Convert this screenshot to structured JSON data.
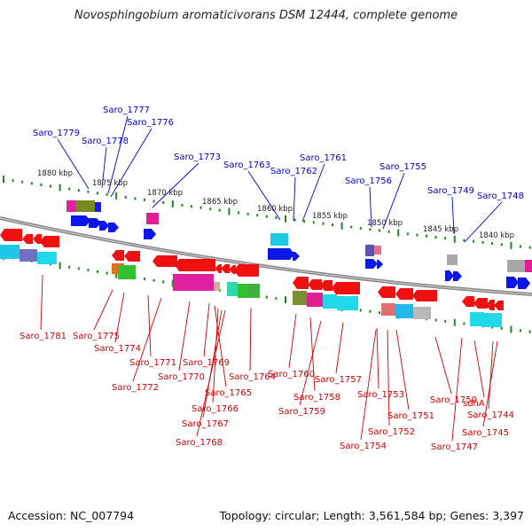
{
  "title": "Novosphingobium aromaticivorans DSM 12444, complete genome",
  "footer": {
    "accession": "Accession: NC_007794",
    "summary": "Topology: circular; Length: 3,561,584 bp; Genes: 3,397"
  },
  "colors": {
    "backbone": "#8a8a8a",
    "tick": "#1a8a1a",
    "top_label": "#0000cc",
    "bottom_label": "#cc0000",
    "forward_gene": "#0a17e6",
    "reverse_gene": "#f01010"
  },
  "kbp_labels": [
    "1880 kbp",
    "1875 kbp",
    "1870 kbp",
    "1865 kbp",
    "1860 kbp",
    "1855 kbp",
    "1850 kbp",
    "1845 kbp",
    "1840 kbp"
  ],
  "top_labels": [
    "Saro_1779",
    "Saro_1777",
    "Saro_1776",
    "Saro_1778",
    "Saro_1773",
    "Saro_1763",
    "Saro_1762",
    "Saro_1761",
    "Saro_1756",
    "Saro_1755",
    "Saro_1749",
    "Saro_1748"
  ],
  "bottom_labels": [
    "Saro_1781",
    "Saro_1775",
    "Saro_1774",
    "Saro_1771",
    "Saro_1772",
    "Saro_1770",
    "Saro_1769",
    "Saro_1765",
    "Saro_1764",
    "Saro_1766",
    "Saro_1767",
    "Saro_1768",
    "Saro_1760",
    "Saro_1758",
    "Saro_1759",
    "Saro_1757",
    "Saro_1753",
    "Saro_1751",
    "Saro_1752",
    "Saro_1754",
    "Saro_1750",
    "Saro_1747",
    "sdhA",
    "Saro_1744",
    "Saro_1745"
  ]
}
